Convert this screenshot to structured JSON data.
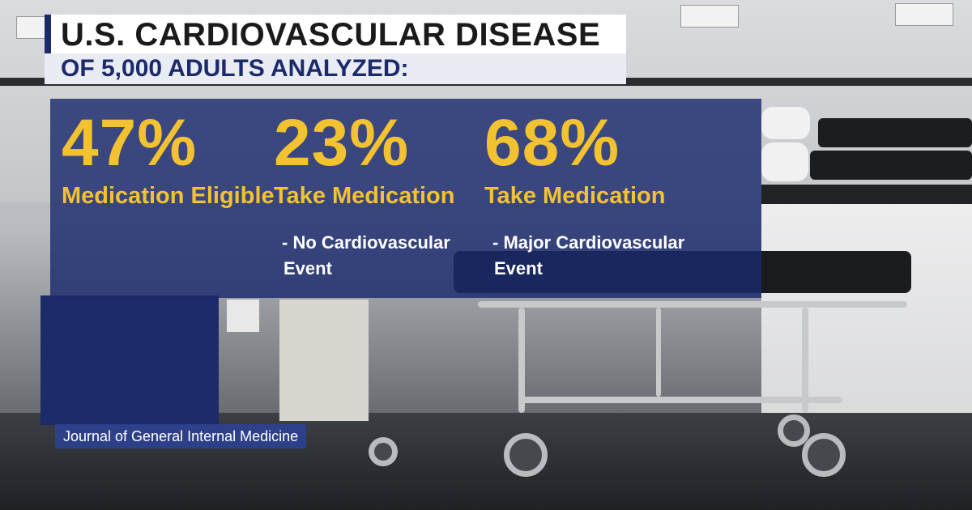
{
  "title": "U.S. CARDIOVASCULAR DISEASE",
  "subtitle": "OF 5,000 ADULTS ANALYZED:",
  "stats": [
    {
      "value": "47%",
      "label": "Medication Eligible",
      "note_line1": "",
      "note_line2": ""
    },
    {
      "value": "23%",
      "label": "Take Medication",
      "note_line1": "- No Cardiovascular",
      "note_line2": "Event"
    },
    {
      "value": "68%",
      "label": "Take Medication",
      "note_line1": "- Major Cardiovascular",
      "note_line2": "Event"
    }
  ],
  "source": "Journal of General Internal Medicine",
  "colors": {
    "accent_yellow": "#f2c230",
    "navy": "#1b2a6b",
    "panel": "#1b2a6c"
  }
}
